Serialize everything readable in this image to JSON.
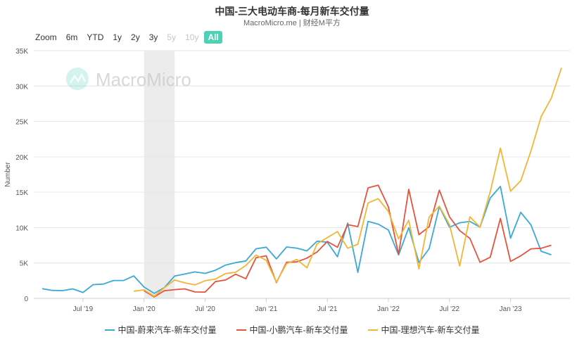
{
  "title": "中国-三大电动车商-每月新车交付量",
  "subtitle": "MacroMicro.me | 财经M平方",
  "watermark": "MacroMicro",
  "range_selector": {
    "label": "Zoom",
    "buttons": [
      {
        "label": "6m",
        "state": "normal"
      },
      {
        "label": "YTD",
        "state": "normal"
      },
      {
        "label": "1y",
        "state": "normal"
      },
      {
        "label": "2y",
        "state": "normal"
      },
      {
        "label": "3y",
        "state": "normal"
      },
      {
        "label": "5y",
        "state": "disabled"
      },
      {
        "label": "10y",
        "state": "disabled"
      },
      {
        "label": "All",
        "state": "active"
      }
    ]
  },
  "colors": {
    "nio": "#3aa9d6",
    "xpeng": "#e5533d",
    "li": "#f2b535",
    "active_button": "#4fd1b5",
    "recession_band": "#e6e6e6"
  },
  "chart_data": {
    "type": "line",
    "ylabel": "Number",
    "ylim": [
      0,
      35000
    ],
    "yticks": [
      0,
      5000,
      10000,
      15000,
      20000,
      25000,
      30000,
      35000
    ],
    "ytick_labels": [
      "0",
      "5K",
      "10K",
      "15K",
      "20K",
      "25K",
      "30K",
      "35K"
    ],
    "xlim": [
      "2019-03",
      "2023-06"
    ],
    "xticks": [
      "2019-07",
      "2020-01",
      "2020-07",
      "2021-01",
      "2021-07",
      "2022-01",
      "2022-07",
      "2023-01"
    ],
    "xtick_labels": [
      "Jul '19",
      "Jan '20",
      "Jul '20",
      "Jan '21",
      "Jul '21",
      "Jan '22",
      "Jul '22",
      "Jan '23"
    ],
    "shaded_band": {
      "from": "2020-01",
      "to": "2020-04"
    },
    "legend_position": "bottom",
    "grid": true,
    "series": [
      {
        "name": "中国-蔚来汽车-新车交付量",
        "color_key": "nio",
        "points": [
          [
            "2019-03",
            1373
          ],
          [
            "2019-04",
            1124
          ],
          [
            "2019-05",
            1089
          ],
          [
            "2019-06",
            1340
          ],
          [
            "2019-07",
            837
          ],
          [
            "2019-08",
            1943
          ],
          [
            "2019-09",
            2019
          ],
          [
            "2019-10",
            2526
          ],
          [
            "2019-11",
            2528
          ],
          [
            "2019-12",
            3170
          ],
          [
            "2020-01",
            1598
          ],
          [
            "2020-02",
            707
          ],
          [
            "2020-03",
            1533
          ],
          [
            "2020-04",
            3155
          ],
          [
            "2020-05",
            3436
          ],
          [
            "2020-06",
            3740
          ],
          [
            "2020-07",
            3533
          ],
          [
            "2020-08",
            3965
          ],
          [
            "2020-09",
            4708
          ],
          [
            "2020-10",
            5055
          ],
          [
            "2020-11",
            5291
          ],
          [
            "2020-12",
            7007
          ],
          [
            "2021-01",
            7225
          ],
          [
            "2021-02",
            5578
          ],
          [
            "2021-03",
            7257
          ],
          [
            "2021-04",
            7102
          ],
          [
            "2021-05",
            6711
          ],
          [
            "2021-06",
            8083
          ],
          [
            "2021-07",
            7931
          ],
          [
            "2021-08",
            5880
          ],
          [
            "2021-09",
            10628
          ],
          [
            "2021-10",
            3667
          ],
          [
            "2021-11",
            10878
          ],
          [
            "2021-12",
            10489
          ],
          [
            "2022-01",
            9652
          ],
          [
            "2022-02",
            6131
          ],
          [
            "2022-03",
            9985
          ],
          [
            "2022-04",
            5074
          ],
          [
            "2022-05",
            7024
          ],
          [
            "2022-06",
            12961
          ],
          [
            "2022-07",
            10052
          ],
          [
            "2022-08",
            10677
          ],
          [
            "2022-09",
            10878
          ],
          [
            "2022-10",
            10059
          ],
          [
            "2022-11",
            14178
          ],
          [
            "2022-12",
            15815
          ],
          [
            "2023-01",
            8506
          ],
          [
            "2023-02",
            12157
          ],
          [
            "2023-03",
            10378
          ],
          [
            "2023-04",
            6658
          ],
          [
            "2023-05",
            6155
          ]
        ]
      },
      {
        "name": "中国-小鹏汽车-新车交付量",
        "color_key": "xpeng",
        "points": [
          [
            "2020-01",
            1076
          ],
          [
            "2020-02",
            206
          ],
          [
            "2020-03",
            1087
          ],
          [
            "2020-04",
            1229
          ],
          [
            "2020-05",
            1345
          ],
          [
            "2020-06",
            909
          ],
          [
            "2020-07",
            880
          ],
          [
            "2020-08",
            2368
          ],
          [
            "2020-09",
            2600
          ],
          [
            "2020-10",
            3410
          ],
          [
            "2020-11",
            2779
          ],
          [
            "2020-12",
            5736
          ],
          [
            "2021-01",
            6015
          ],
          [
            "2021-02",
            2223
          ],
          [
            "2021-03",
            5102
          ],
          [
            "2021-04",
            5147
          ],
          [
            "2021-05",
            5686
          ],
          [
            "2021-06",
            6565
          ],
          [
            "2021-07",
            8040
          ],
          [
            "2021-08",
            7214
          ],
          [
            "2021-09",
            10412
          ],
          [
            "2021-10",
            10138
          ],
          [
            "2021-11",
            15613
          ],
          [
            "2021-12",
            16000
          ],
          [
            "2022-01",
            12922
          ],
          [
            "2022-02",
            6225
          ],
          [
            "2022-03",
            15414
          ],
          [
            "2022-04",
            9002
          ],
          [
            "2022-05",
            10125
          ],
          [
            "2022-06",
            15295
          ],
          [
            "2022-07",
            11524
          ],
          [
            "2022-08",
            9578
          ],
          [
            "2022-09",
            8468
          ],
          [
            "2022-10",
            5101
          ],
          [
            "2022-11",
            5811
          ],
          [
            "2022-12",
            11292
          ],
          [
            "2023-01",
            5218
          ],
          [
            "2023-02",
            6010
          ],
          [
            "2023-03",
            7002
          ],
          [
            "2023-04",
            7079
          ],
          [
            "2023-05",
            7506
          ]
        ]
      },
      {
        "name": "中国-理想汽车-新车交付量",
        "color_key": "li",
        "points": [
          [
            "2019-12",
            1000
          ],
          [
            "2020-01",
            1200
          ],
          [
            "2020-02",
            300
          ],
          [
            "2020-03",
            1500
          ],
          [
            "2020-04",
            2600
          ],
          [
            "2020-05",
            2200
          ],
          [
            "2020-06",
            1900
          ],
          [
            "2020-07",
            2500
          ],
          [
            "2020-08",
            2711
          ],
          [
            "2020-09",
            3504
          ],
          [
            "2020-10",
            3692
          ],
          [
            "2020-11",
            4646
          ],
          [
            "2020-12",
            6126
          ],
          [
            "2021-01",
            5379
          ],
          [
            "2021-02",
            2300
          ],
          [
            "2021-03",
            4900
          ],
          [
            "2021-04",
            5500
          ],
          [
            "2021-05",
            4323
          ],
          [
            "2021-06",
            7713
          ],
          [
            "2021-07",
            8589
          ],
          [
            "2021-08",
            9433
          ],
          [
            "2021-09",
            7094
          ],
          [
            "2021-10",
            7649
          ],
          [
            "2021-11",
            13485
          ],
          [
            "2021-12",
            14087
          ],
          [
            "2022-01",
            12268
          ],
          [
            "2022-02",
            8414
          ],
          [
            "2022-03",
            11034
          ],
          [
            "2022-04",
            4167
          ],
          [
            "2022-05",
            11496
          ],
          [
            "2022-06",
            13024
          ],
          [
            "2022-07",
            10422
          ],
          [
            "2022-08",
            4571
          ],
          [
            "2022-09",
            11531
          ],
          [
            "2022-10",
            10052
          ],
          [
            "2022-11",
            15034
          ],
          [
            "2022-12",
            21233
          ],
          [
            "2023-01",
            15141
          ],
          [
            "2023-02",
            16620
          ],
          [
            "2023-03",
            20823
          ],
          [
            "2023-04",
            25681
          ],
          [
            "2023-05",
            28277
          ],
          [
            "2023-06",
            32575
          ]
        ]
      }
    ]
  }
}
